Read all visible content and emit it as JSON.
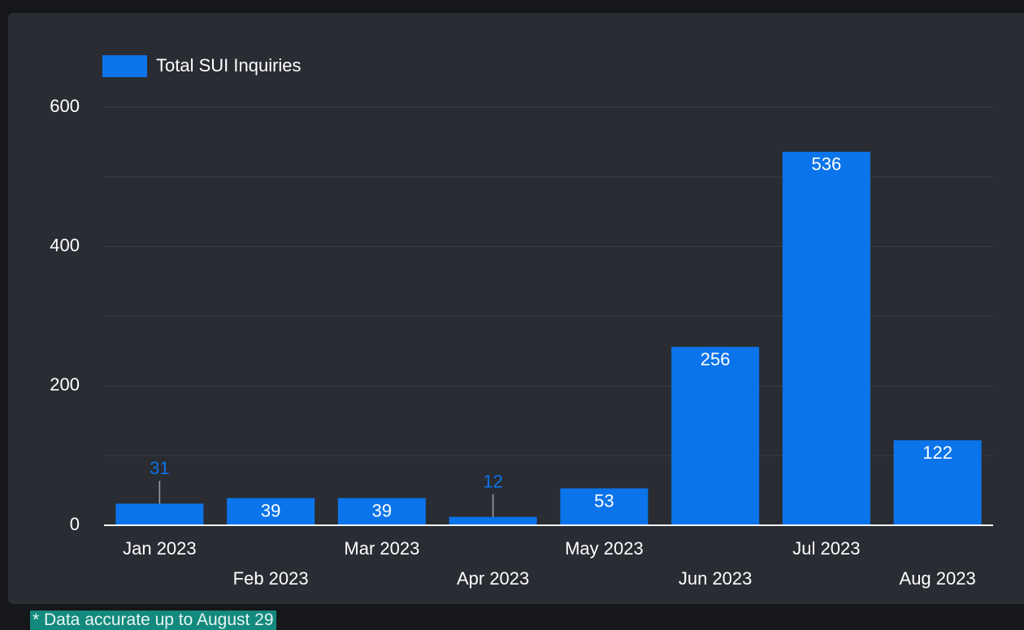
{
  "chart_data": {
    "type": "bar",
    "legend": "Total SUI Inquiries",
    "categories": [
      "Jan 2023",
      "Feb 2023",
      "Mar 2023",
      "Apr 2023",
      "May 2023",
      "Jun 2023",
      "Jul 2023",
      "Aug 2023"
    ],
    "values": [
      31,
      39,
      39,
      12,
      53,
      256,
      536,
      122
    ],
    "color": "#0b74ea",
    "ylim": [
      0,
      600
    ],
    "yticks": [
      0,
      200,
      400,
      600
    ],
    "minor_yticks": [
      100,
      300,
      500
    ],
    "grid": true
  },
  "note": "* Data accurate up to August 29"
}
